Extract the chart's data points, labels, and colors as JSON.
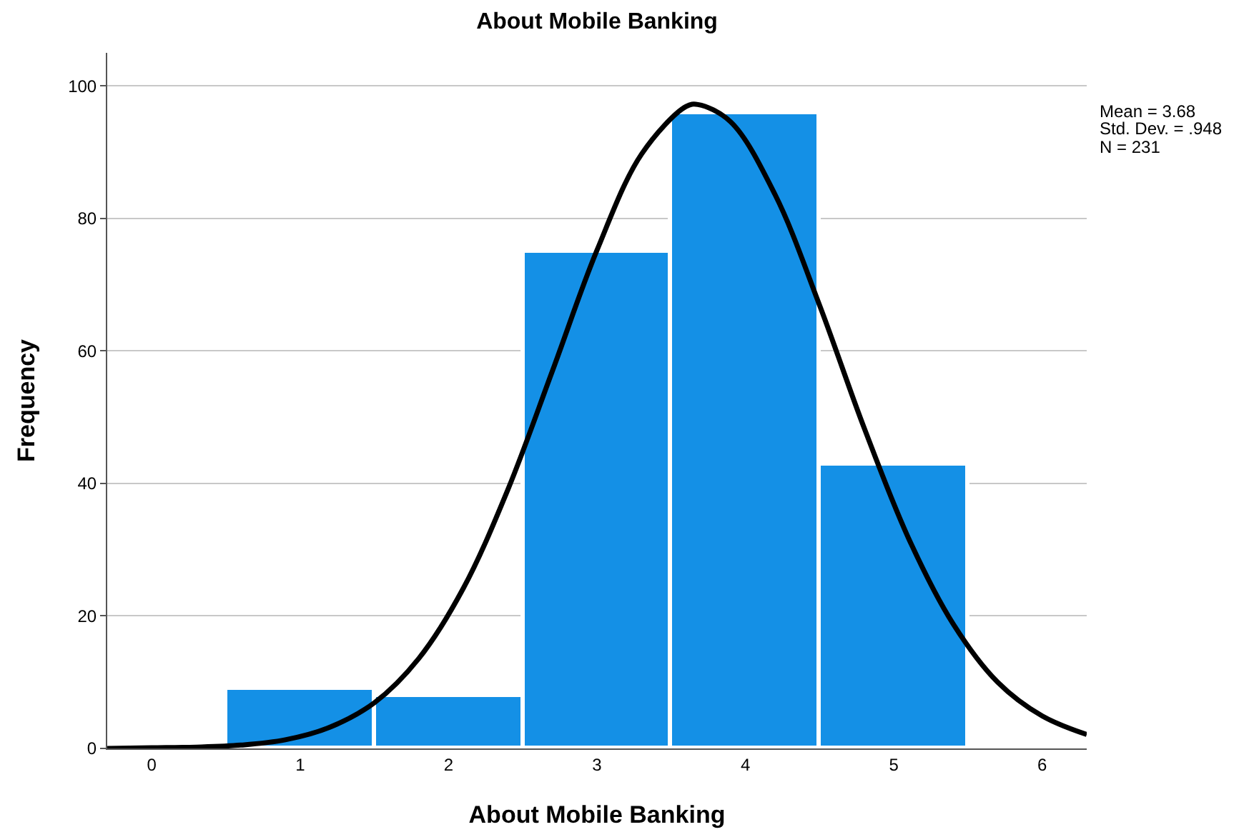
{
  "chart_data": {
    "type": "histogram",
    "title": "About Mobile Banking",
    "xlabel": "About Mobile Banking",
    "ylabel": "Frequency",
    "bins": [
      0.5,
      1.5,
      2.5,
      3.5,
      4.5,
      5.5
    ],
    "values": [
      9,
      8,
      75,
      96,
      43
    ],
    "color": "#1490e6",
    "series": [
      {
        "type": "line",
        "color": "#000000",
        "x": [
          -0.3,
          0,
          0.3,
          0.6,
          0.9,
          1.2,
          1.5,
          1.8,
          2.1,
          2.4,
          2.7,
          3.0,
          3.3,
          3.6,
          3.68,
          3.9,
          4.2,
          4.5,
          4.8,
          5.1,
          5.4,
          5.7,
          6.0,
          6.3
        ],
        "values": [
          0,
          0.1,
          0.2,
          0.5,
          1.3,
          3.2,
          6.9,
          13.6,
          24.2,
          39.1,
          57.0,
          75.2,
          89.7,
          96.9,
          97.2,
          94.6,
          83.6,
          66.9,
          48.4,
          31.7,
          18.8,
          10.0,
          4.9,
          2.1
        ]
      }
    ],
    "xlim": [
      -0.3,
      6.3
    ],
    "xticks": [
      0,
      1,
      2,
      3,
      4,
      5,
      6
    ],
    "ylim": [
      0,
      105
    ],
    "yticks": [
      0,
      20,
      40,
      60,
      80,
      100
    ],
    "grid": "y",
    "marker": "none",
    "line_style": "solid",
    "annotations": [
      "Mean = 3.68",
      "Std. Dev. = .948",
      "N = 231"
    ]
  }
}
